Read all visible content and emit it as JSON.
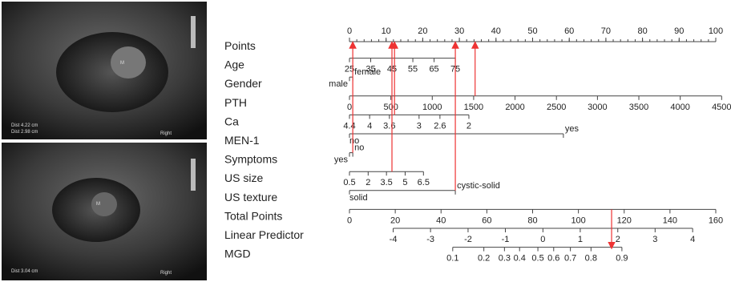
{
  "figure": {
    "ultrasound_images": [
      {
        "labels": [
          "M",
          "Dist 4.22 cm",
          "Dist 2.98 cm",
          "Right"
        ]
      },
      {
        "labels": [
          "M",
          "Dist 3.04 cm",
          "Right"
        ]
      }
    ],
    "nomogram": {
      "points_lim": [
        0,
        100
      ],
      "total_lim": [
        0,
        160
      ],
      "rows": [
        {
          "label": "Points",
          "scale": "points",
          "ticks": [
            0,
            10,
            20,
            30,
            40,
            50,
            60,
            70,
            80,
            90,
            100
          ]
        },
        {
          "label": "Age",
          "scale": "points",
          "ticks": [
            {
              "label": "25",
              "points": 0
            },
            {
              "label": "35",
              "points": 5.8
            },
            {
              "label": "45",
              "points": 11.6
            },
            {
              "label": "55",
              "points": 17.3
            },
            {
              "label": "65",
              "points": 23.1
            },
            {
              "label": "75",
              "points": 28.9
            }
          ]
        },
        {
          "label": "Gender",
          "scale": "points",
          "ticks": [
            {
              "label": "male",
              "points": 0
            },
            {
              "label": "female",
              "points": 0.9
            }
          ]
        },
        {
          "label": "PTH",
          "scale": "points",
          "ticks": [
            {
              "label": "0",
              "points": 0
            },
            {
              "label": "500",
              "points": 11.3
            },
            {
              "label": "1000",
              "points": 22.6
            },
            {
              "label": "1500",
              "points": 33.9
            },
            {
              "label": "2000",
              "points": 45.2
            },
            {
              "label": "2500",
              "points": 56.5
            },
            {
              "label": "3000",
              "points": 67.7
            },
            {
              "label": "3500",
              "points": 79
            },
            {
              "label": "4000",
              "points": 90.3
            },
            {
              "label": "4500",
              "points": 101.6
            }
          ]
        },
        {
          "label": "Ca",
          "scale": "points",
          "ticks": [
            {
              "label": "4.4",
              "points": 0
            },
            {
              "label": "4",
              "points": 5.5
            },
            {
              "label": "3.6",
              "points": 10.9
            },
            {
              "label": "3",
              "points": 19
            },
            {
              "label": "2.6",
              "points": 24.7
            },
            {
              "label": "2",
              "points": 32.6
            }
          ]
        },
        {
          "label": "MEN-1",
          "scale": "points",
          "ticks": [
            {
              "label": "no",
              "points": 0
            },
            {
              "label": "yes",
              "points": 58.4
            }
          ]
        },
        {
          "label": "Symptoms",
          "scale": "points",
          "ticks": [
            {
              "label": "yes",
              "points": 0
            },
            {
              "label": "no",
              "points": 0.9
            }
          ]
        },
        {
          "label": "US size",
          "scale": "points",
          "ticks": [
            {
              "label": "0.5",
              "points": 0
            },
            {
              "label": "2",
              "points": 5.1
            },
            {
              "label": "3.5",
              "points": 10.1
            },
            {
              "label": "5",
              "points": 15.2
            },
            {
              "label": "6.5",
              "points": 20.2
            }
          ]
        },
        {
          "label": "US texture",
          "scale": "points",
          "ticks": [
            {
              "label": "solid",
              "points": 0
            },
            {
              "label": "cystic-solid",
              "points": 28.9
            }
          ]
        },
        {
          "label": "Total Points",
          "scale": "total",
          "ticks": [
            0,
            20,
            40,
            60,
            80,
            100,
            120,
            140,
            160
          ]
        },
        {
          "label": "Linear Predictor",
          "scale": "total",
          "ticks": [
            {
              "label": "-4",
              "total": 19.1
            },
            {
              "label": "-3",
              "total": 35.4
            },
            {
              "label": "-2",
              "total": 51.8
            },
            {
              "label": "-1",
              "total": 68.1
            },
            {
              "label": "0",
              "total": 84.5
            },
            {
              "label": "1",
              "total": 100.8
            },
            {
              "label": "2",
              "total": 117.2
            },
            {
              "label": "3",
              "total": 133.5
            },
            {
              "label": "4",
              "total": 149.9
            }
          ]
        },
        {
          "label": "MGD",
          "scale": "total",
          "ticks": [
            {
              "label": "0.1",
              "total": 45.1
            },
            {
              "label": "0.2",
              "total": 58.7
            },
            {
              "label": "0.3",
              "total": 67.7
            },
            {
              "label": "0.4",
              "total": 74.3
            },
            {
              "label": "0.5",
              "total": 82.3
            },
            {
              "label": "0.6",
              "total": 89.2
            },
            {
              "label": "0.7",
              "total": 96.5
            },
            {
              "label": "0.8",
              "total": 105.5
            },
            {
              "label": "0.9",
              "total": 119
            }
          ]
        }
      ],
      "points_readings": [
        {
          "row": 6,
          "points": 0.9
        },
        {
          "row": 7,
          "points": 11.6
        },
        {
          "row": 4,
          "points": 12.3
        },
        {
          "row": 8,
          "points": 28.9
        },
        {
          "row": 3,
          "points": 34.3
        }
      ],
      "total_reading": {
        "from_row": 9,
        "to_row": 11,
        "total": 114.5
      }
    }
  }
}
